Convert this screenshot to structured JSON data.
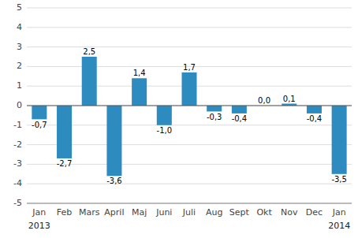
{
  "chart_data": {
    "type": "bar",
    "categories": [
      "Jan",
      "Feb",
      "Mars",
      "April",
      "Maj",
      "Juni",
      "Juli",
      "Aug",
      "Sept",
      "Okt",
      "Nov",
      "Dec",
      "Jan"
    ],
    "values": [
      -0.7,
      -2.7,
      2.5,
      -3.6,
      1.4,
      -1.0,
      1.7,
      -0.3,
      -0.4,
      0.0,
      0.1,
      -0.4,
      -3.5
    ],
    "value_labels": [
      "-0,7",
      "-2,7",
      "2,5",
      "-3,6",
      "1,4",
      "-1,0",
      "1,7",
      "-0,3",
      "-0,4",
      "0,0",
      "0,1",
      "-0,4",
      "-3,5"
    ],
    "color": "#2e8bc0",
    "ylim": [
      -5,
      5
    ],
    "yticks": [
      -5,
      -4,
      -3,
      -2,
      -1,
      0,
      1,
      2,
      3,
      4,
      5
    ],
    "grid": true,
    "data_labels": true,
    "annotations": [
      {
        "text": "2013",
        "x": 0
      },
      {
        "text": "2014",
        "x": 12
      }
    ]
  }
}
